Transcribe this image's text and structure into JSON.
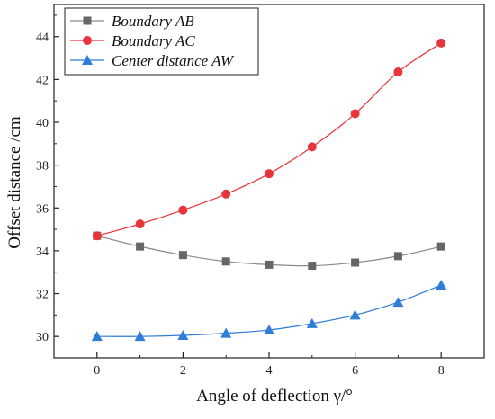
{
  "chart_data": {
    "type": "line",
    "title": "",
    "xlabel": "Angle of deflection γ/°",
    "ylabel": "Offset distance /cm",
    "xlim": [
      -1,
      9
    ],
    "ylim": [
      29,
      45.5
    ],
    "xticks": [
      "0",
      "2",
      "4",
      "6",
      "8"
    ],
    "yticks": [
      "30",
      "32",
      "34",
      "36",
      "38",
      "40",
      "42",
      "44"
    ],
    "x": [
      0,
      1,
      2,
      3,
      4,
      5,
      6,
      7,
      8
    ],
    "grid": false,
    "legend_position": "top-left",
    "series": [
      {
        "name": "Boundary AB",
        "marker": "square",
        "color": "#666666",
        "line_color": "#8a8a8a",
        "values": [
          34.7,
          34.2,
          33.8,
          33.5,
          33.35,
          33.3,
          33.45,
          33.75,
          34.2
        ]
      },
      {
        "name": "Boundary AC",
        "marker": "circle",
        "color": "#e8353b",
        "line_color": "#e8353b",
        "values": [
          34.7,
          35.25,
          35.9,
          36.65,
          37.6,
          38.85,
          40.4,
          42.35,
          43.7
        ]
      },
      {
        "name": "Center distance AW",
        "marker": "triangle",
        "color": "#2e7dd7",
        "line_color": "#2e7dd7",
        "values": [
          30.0,
          30.0,
          30.05,
          30.15,
          30.3,
          30.6,
          31.0,
          31.6,
          32.4
        ]
      }
    ]
  }
}
